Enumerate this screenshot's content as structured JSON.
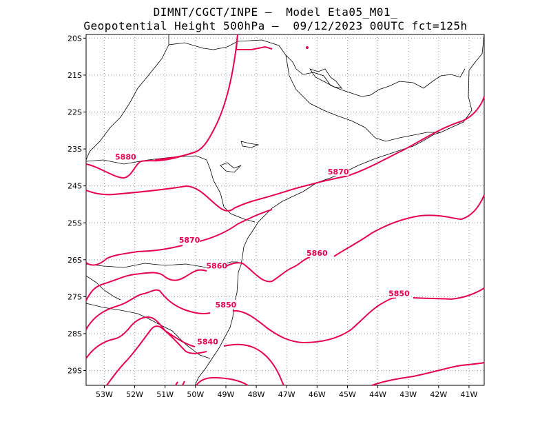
{
  "title": {
    "line1": "DIMNT/CGCT/INPE –  Model Eta05_M01_",
    "line2": "Geopotential Height 500hPa –  09/12/2023 00UTC fct=125h"
  },
  "colors": {
    "contour": "#e8004f",
    "coast": "#000000",
    "grid": "#9a9a9a"
  },
  "map": {
    "lon_range": [
      -53.6,
      -40.5
    ],
    "lat_range": [
      -29.4,
      -19.9
    ],
    "lon_ticks": [
      {
        "v": -53,
        "label": "53W"
      },
      {
        "v": -52,
        "label": "52W"
      },
      {
        "v": -51,
        "label": "51W"
      },
      {
        "v": -50,
        "label": "50W"
      },
      {
        "v": -49,
        "label": "49W"
      },
      {
        "v": -48,
        "label": "48W"
      },
      {
        "v": -47,
        "label": "47W"
      },
      {
        "v": -46,
        "label": "46W"
      },
      {
        "v": -45,
        "label": "45W"
      },
      {
        "v": -44,
        "label": "44W"
      },
      {
        "v": -43,
        "label": "43W"
      },
      {
        "v": -42,
        "label": "42W"
      },
      {
        "v": -41,
        "label": "41W"
      }
    ],
    "lat_ticks": [
      {
        "v": -20,
        "label": "20S"
      },
      {
        "v": -21,
        "label": "21S"
      },
      {
        "v": -22,
        "label": "22S"
      },
      {
        "v": -23,
        "label": "23S"
      },
      {
        "v": -24,
        "label": "24S"
      },
      {
        "v": -25,
        "label": "25S"
      },
      {
        "v": -26,
        "label": "26S"
      },
      {
        "v": -27,
        "label": "27S"
      },
      {
        "v": -28,
        "label": "28S"
      },
      {
        "v": -29,
        "label": "29S"
      }
    ]
  },
  "contour_labels": [
    {
      "text": "5880",
      "lon": -52.3,
      "lat": -23.25
    },
    {
      "text": "5870",
      "lon": -45.3,
      "lat": -23.65
    },
    {
      "text": "5870",
      "lon": -50.2,
      "lat": -25.5
    },
    {
      "text": "5860",
      "lon": -49.3,
      "lat": -26.2
    },
    {
      "text": "5860",
      "lon": -46.0,
      "lat": -25.85
    },
    {
      "text": "5850",
      "lon": -49.0,
      "lat": -27.25
    },
    {
      "text": "5850",
      "lon": -43.3,
      "lat": -26.95
    },
    {
      "text": "5840",
      "lon": -49.6,
      "lat": -28.25
    }
  ]
}
